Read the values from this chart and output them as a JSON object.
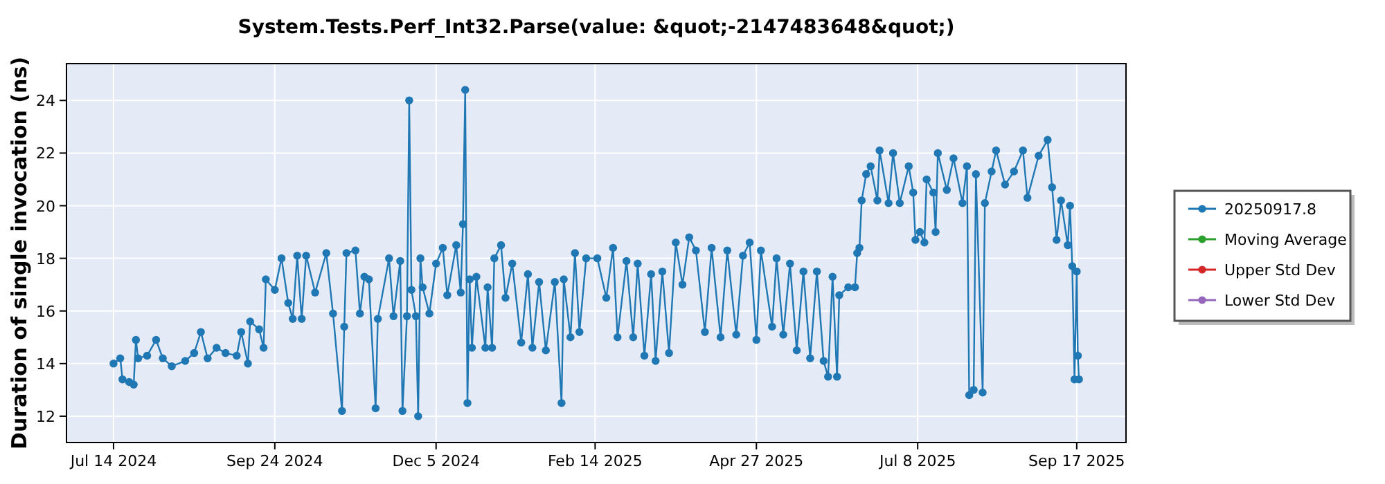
{
  "chart_data": {
    "type": "line",
    "title": "System.Tests.Perf_Int32.Parse(value: &quot;-2147483648&quot;)",
    "ylabel": "Duration of single invocation (ns)",
    "xlim": [
      "2024-06-23",
      "2025-10-09"
    ],
    "xticks": [
      {
        "value": "2024-07-14",
        "label": "Jul 14 2024"
      },
      {
        "value": "2024-09-24",
        "label": "Sep 24 2024"
      },
      {
        "value": "2024-12-05",
        "label": "Dec 5 2024"
      },
      {
        "value": "2025-02-14",
        "label": "Feb 14 2025"
      },
      {
        "value": "2025-04-27",
        "label": "Apr 27 2025"
      },
      {
        "value": "2025-07-08",
        "label": "Jul 8 2025"
      },
      {
        "value": "2025-09-17",
        "label": "Sep 17 2025"
      }
    ],
    "ylim": [
      11,
      25.4
    ],
    "yticks": [
      12,
      14,
      16,
      18,
      20,
      22,
      24
    ],
    "grid": true,
    "legend": "right",
    "marker": "circle",
    "series": [
      {
        "name": "20250917.8",
        "color": "#1f77b4",
        "x": [
          "2024-07-14",
          "2024-07-17",
          "2024-07-18",
          "2024-07-21",
          "2024-07-23",
          "2024-07-24",
          "2024-07-25",
          "2024-07-29",
          "2024-08-02",
          "2024-08-05",
          "2024-08-09",
          "2024-08-15",
          "2024-08-19",
          "2024-08-22",
          "2024-08-25",
          "2024-08-29",
          "2024-09-02",
          "2024-09-07",
          "2024-09-09",
          "2024-09-12",
          "2024-09-13",
          "2024-09-17",
          "2024-09-19",
          "2024-09-20",
          "2024-09-24",
          "2024-09-27",
          "2024-09-30",
          "2024-10-02",
          "2024-10-04",
          "2024-10-06",
          "2024-10-08",
          "2024-10-12",
          "2024-10-17",
          "2024-10-20",
          "2024-10-24",
          "2024-10-25",
          "2024-10-26",
          "2024-10-30",
          "2024-11-01",
          "2024-11-03",
          "2024-11-05",
          "2024-11-08",
          "2024-11-09",
          "2024-11-14",
          "2024-11-16",
          "2024-11-19",
          "2024-11-20",
          "2024-11-22",
          "2024-11-23",
          "2024-11-24",
          "2024-11-26",
          "2024-11-27",
          "2024-11-28",
          "2024-11-29",
          "2024-12-02",
          "2024-12-05",
          "2024-12-08",
          "2024-12-10",
          "2024-12-14",
          "2024-12-16",
          "2024-12-17",
          "2024-12-18",
          "2024-12-19",
          "2024-12-20",
          "2024-12-21",
          "2024-12-23",
          "2024-12-27",
          "2024-12-28",
          "2024-12-30",
          "2024-12-31",
          "2025-01-03",
          "2025-01-05",
          "2025-01-08",
          "2025-01-12",
          "2025-01-15",
          "2025-01-17",
          "2025-01-20",
          "2025-01-23",
          "2025-01-27",
          "2025-01-30",
          "2025-01-31",
          "2025-02-03",
          "2025-02-05",
          "2025-02-07",
          "2025-02-10",
          "2025-02-15",
          "2025-02-19",
          "2025-02-22",
          "2025-02-24",
          "2025-02-28",
          "2025-03-03",
          "2025-03-05",
          "2025-03-08",
          "2025-03-11",
          "2025-03-13",
          "2025-03-16",
          "2025-03-19",
          "2025-03-22",
          "2025-03-25",
          "2025-03-28",
          "2025-03-31",
          "2025-04-04",
          "2025-04-07",
          "2025-04-11",
          "2025-04-14",
          "2025-04-18",
          "2025-04-21",
          "2025-04-24",
          "2025-04-27",
          "2025-04-29",
          "2025-05-04",
          "2025-05-06",
          "2025-05-09",
          "2025-05-12",
          "2025-05-15",
          "2025-05-18",
          "2025-05-21",
          "2025-05-24",
          "2025-05-27",
          "2025-05-29",
          "2025-05-31",
          "2025-06-02",
          "2025-06-03",
          "2025-06-07",
          "2025-06-10",
          "2025-06-11",
          "2025-06-12",
          "2025-06-13",
          "2025-06-15",
          "2025-06-17",
          "2025-06-20",
          "2025-06-21",
          "2025-06-25",
          "2025-06-27",
          "2025-06-30",
          "2025-07-04",
          "2025-07-06",
          "2025-07-07",
          "2025-07-09",
          "2025-07-11",
          "2025-07-12",
          "2025-07-15",
          "2025-07-16",
          "2025-07-17",
          "2025-07-21",
          "2025-07-24",
          "2025-07-28",
          "2025-07-30",
          "2025-07-31",
          "2025-08-02",
          "2025-08-03",
          "2025-08-06",
          "2025-08-07",
          "2025-08-10",
          "2025-08-12",
          "2025-08-16",
          "2025-08-20",
          "2025-08-24",
          "2025-08-26",
          "2025-08-31",
          "2025-09-04",
          "2025-09-06",
          "2025-09-08",
          "2025-09-10",
          "2025-09-13",
          "2025-09-14",
          "2025-09-15",
          "2025-09-16",
          "2025-09-17",
          "2025-09-17T12:00",
          "2025-09-18"
        ],
        "values": [
          14.0,
          14.2,
          13.4,
          13.3,
          13.2,
          14.9,
          14.2,
          14.3,
          14.9,
          14.2,
          13.9,
          14.1,
          14.4,
          15.2,
          14.2,
          14.6,
          14.4,
          14.3,
          15.2,
          14.0,
          15.6,
          15.3,
          14.6,
          17.2,
          16.8,
          18.0,
          16.3,
          15.7,
          18.1,
          15.7,
          18.1,
          16.7,
          18.2,
          15.9,
          12.2,
          15.4,
          18.2,
          18.3,
          15.9,
          17.3,
          17.2,
          12.3,
          15.7,
          18.0,
          15.8,
          17.9,
          12.2,
          15.8,
          24.0,
          16.8,
          15.8,
          12.0,
          18.0,
          16.9,
          15.9,
          17.8,
          18.4,
          16.6,
          18.5,
          16.7,
          19.3,
          24.4,
          12.5,
          17.2,
          14.6,
          17.3,
          14.6,
          16.9,
          14.6,
          18.0,
          18.5,
          16.5,
          17.8,
          14.8,
          17.4,
          14.6,
          17.1,
          14.5,
          17.1,
          12.5,
          17.2,
          15.0,
          18.2,
          15.2,
          18.0,
          18.0,
          16.5,
          18.4,
          15.0,
          17.9,
          15.0,
          17.8,
          14.3,
          17.4,
          14.1,
          17.5,
          14.4,
          18.6,
          17.0,
          18.8,
          18.3,
          15.2,
          18.4,
          15.0,
          18.3,
          15.1,
          18.1,
          18.6,
          14.9,
          18.3,
          15.4,
          18.0,
          15.1,
          17.8,
          14.5,
          17.5,
          14.2,
          17.5,
          14.1,
          13.5,
          17.3,
          13.5,
          16.6,
          16.9,
          16.9,
          18.2,
          18.4,
          20.2,
          21.2,
          21.5,
          20.2,
          22.1,
          20.1,
          22.0,
          20.1,
          21.5,
          20.5,
          18.7,
          19.0,
          18.6,
          21.0,
          20.5,
          19.0,
          22.0,
          20.6,
          21.8,
          20.1,
          21.5,
          12.8,
          13.0,
          21.2,
          12.9,
          20.1,
          21.3,
          22.1,
          20.8,
          21.3,
          22.1,
          20.3,
          21.9,
          22.5,
          20.7,
          18.7,
          20.2,
          18.5,
          20.0,
          17.7,
          13.4,
          17.5,
          14.3,
          13.4
        ]
      },
      {
        "name": "Moving Average",
        "color": "#2ca02c"
      },
      {
        "name": "Upper Std Dev",
        "color": "#d62728"
      },
      {
        "name": "Lower Std Dev",
        "color": "#9467bd"
      }
    ]
  }
}
